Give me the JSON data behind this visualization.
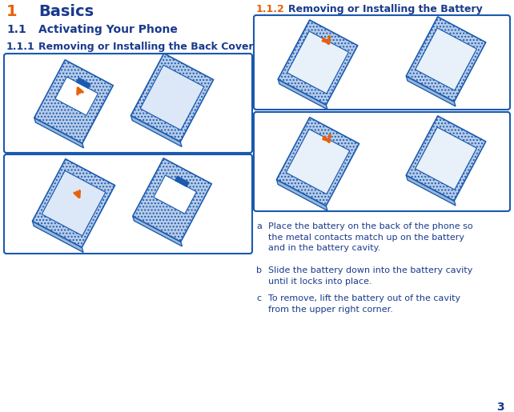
{
  "bg_color": "#ffffff",
  "heading1_num": "1",
  "heading1_text": "Basics",
  "heading1_num_color": "#E8610A",
  "heading1_text_color": "#1a3a8c",
  "heading2_num": "1.1",
  "heading2_text": "Activating Your Phone",
  "heading2_color": "#1a3a8c",
  "heading3_num": "1.1.1",
  "heading3_text": "Removing or Installing the Back Cover",
  "heading3_color": "#1a3a8c",
  "heading4_num": "1.1.2",
  "heading4_text": "Removing or Installing the Battery",
  "heading4_num_color": "#E8610A",
  "heading4_text_color": "#1a3a8c",
  "box_edge_color": "#1a5ab0",
  "box_fill_color": "#ffffff",
  "text_color": "#1a3a8c",
  "bullet_a": "a   Place the battery on the back of the phone so\n    the metal contacts match up on the battery\n    and in the battery cavity.",
  "bullet_b": "b   Slide the battery down into the battery cavity\n    until it locks into place.",
  "bullet_c": "c   To remove, lift the battery out of the cavity\n    from the upper right corner.",
  "page_num": "3",
  "divider_color": "#1a3a8c",
  "arrow_color": "#E8610A",
  "phone_edge": "#1a5ab0",
  "phone_fill": "#c8d8f0",
  "phone_inner_fill": "#e8f0fa",
  "phone_hatch_color": "#6090c0"
}
